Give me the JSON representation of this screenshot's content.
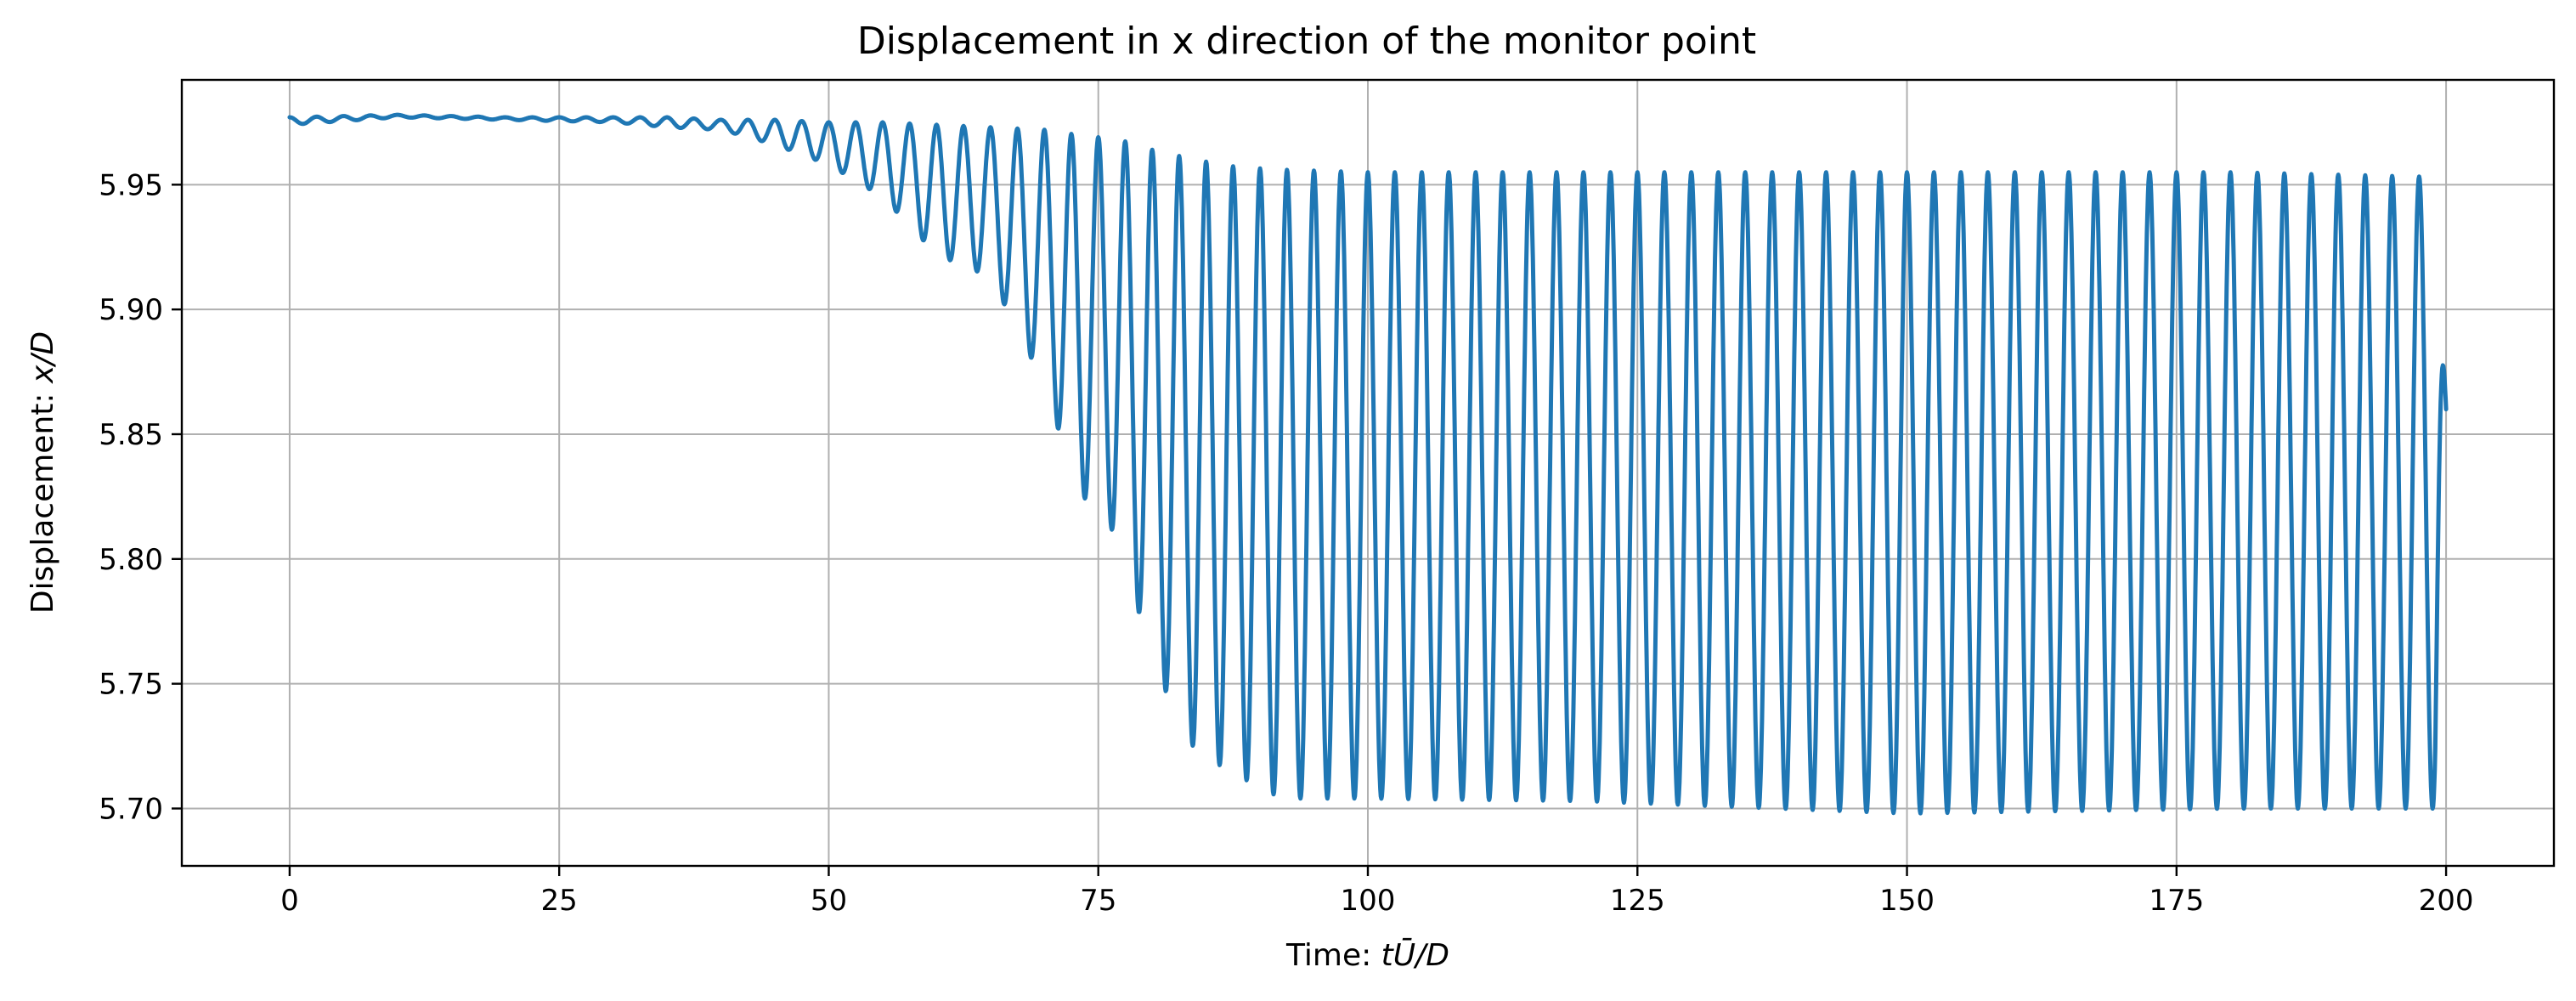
{
  "chart_data": {
    "type": "line",
    "title": "Displacement in x direction of the monitor point",
    "xlabel": "Time: tŪ/D",
    "ylabel": "Displacement: x/D",
    "xlim": [
      -10,
      210
    ],
    "ylim": [
      5.677,
      5.992
    ],
    "xticks": [
      0,
      25,
      50,
      75,
      100,
      125,
      150,
      175,
      200
    ],
    "xtick_labels": [
      "0",
      "25",
      "50",
      "75",
      "100",
      "125",
      "150",
      "175",
      "200"
    ],
    "yticks": [
      5.7,
      5.75,
      5.8,
      5.85,
      5.9,
      5.95
    ],
    "ytick_labels": [
      "5.70",
      "5.75",
      "5.80",
      "5.85",
      "5.90",
      "5.95"
    ],
    "grid": true,
    "series": [
      {
        "name": "",
        "color": "#1f77b4",
        "description_of_shape": "Nearly constant ~5.977 with small ripples until t≈40, then oscillation (period ≈2.5) with growing amplitude, saturating around t≈92 between ~5.955 and ~5.70; ends at 5.86 at t=200.",
        "envelope_points": {
          "t": [
            0,
            10,
            20,
            30,
            35,
            40,
            45,
            50,
            55,
            60,
            65,
            70,
            73,
            77,
            80,
            84,
            88,
            92,
            100,
            120,
            150,
            180,
            200
          ],
          "upper": [
            5.977,
            5.978,
            5.977,
            5.977,
            5.977,
            5.976,
            5.976,
            5.975,
            5.975,
            5.974,
            5.973,
            5.972,
            5.97,
            5.968,
            5.964,
            5.96,
            5.957,
            5.956,
            5.955,
            5.955,
            5.955,
            5.955,
            5.953
          ],
          "lower": [
            5.974,
            5.977,
            5.976,
            5.975,
            5.973,
            5.972,
            5.966,
            5.958,
            5.945,
            5.922,
            5.913,
            5.87,
            5.828,
            5.808,
            5.758,
            5.723,
            5.713,
            5.704,
            5.704,
            5.703,
            5.698,
            5.7,
            5.7
          ]
        },
        "period": 2.5,
        "end_value": 5.86
      }
    ]
  }
}
